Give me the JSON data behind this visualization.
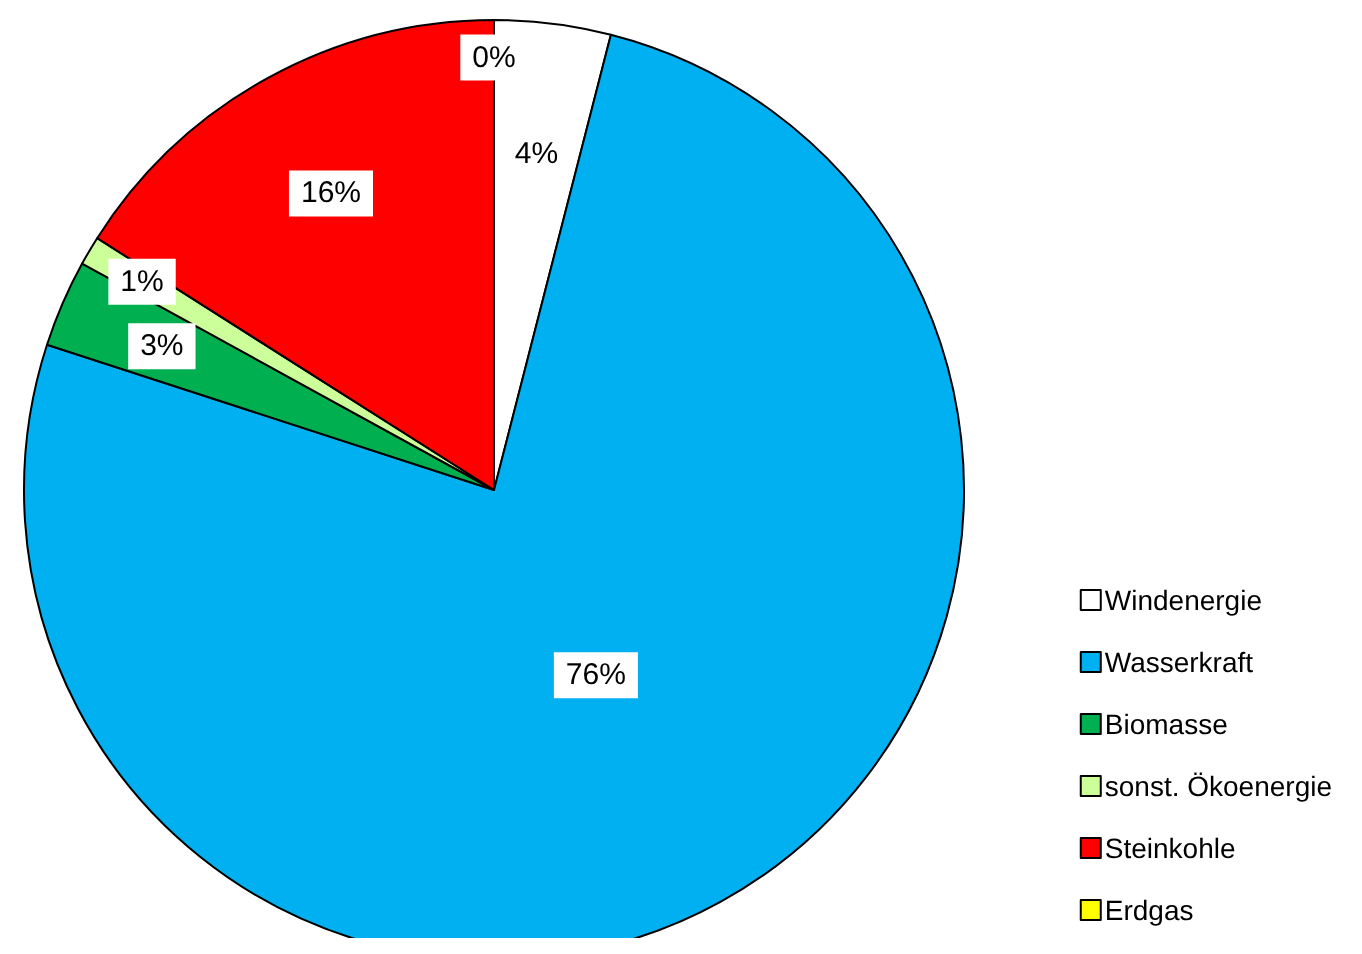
{
  "chart_data": {
    "type": "pie",
    "categories": [
      "Windenergie",
      "Wasserkraft",
      "Biomasse",
      "sonst. Ökoenergie",
      "Steinkohle",
      "Erdgas"
    ],
    "values": [
      4,
      76,
      3,
      1,
      16,
      0
    ],
    "colors": [
      "#ffffff",
      "#00b0f0",
      "#00b050",
      "#ccff99",
      "#ff0000",
      "#ffff00"
    ],
    "value_labels": [
      "4%",
      "76%",
      "3%",
      "1%",
      "16%",
      "0%"
    ],
    "legend": "bottom right"
  }
}
